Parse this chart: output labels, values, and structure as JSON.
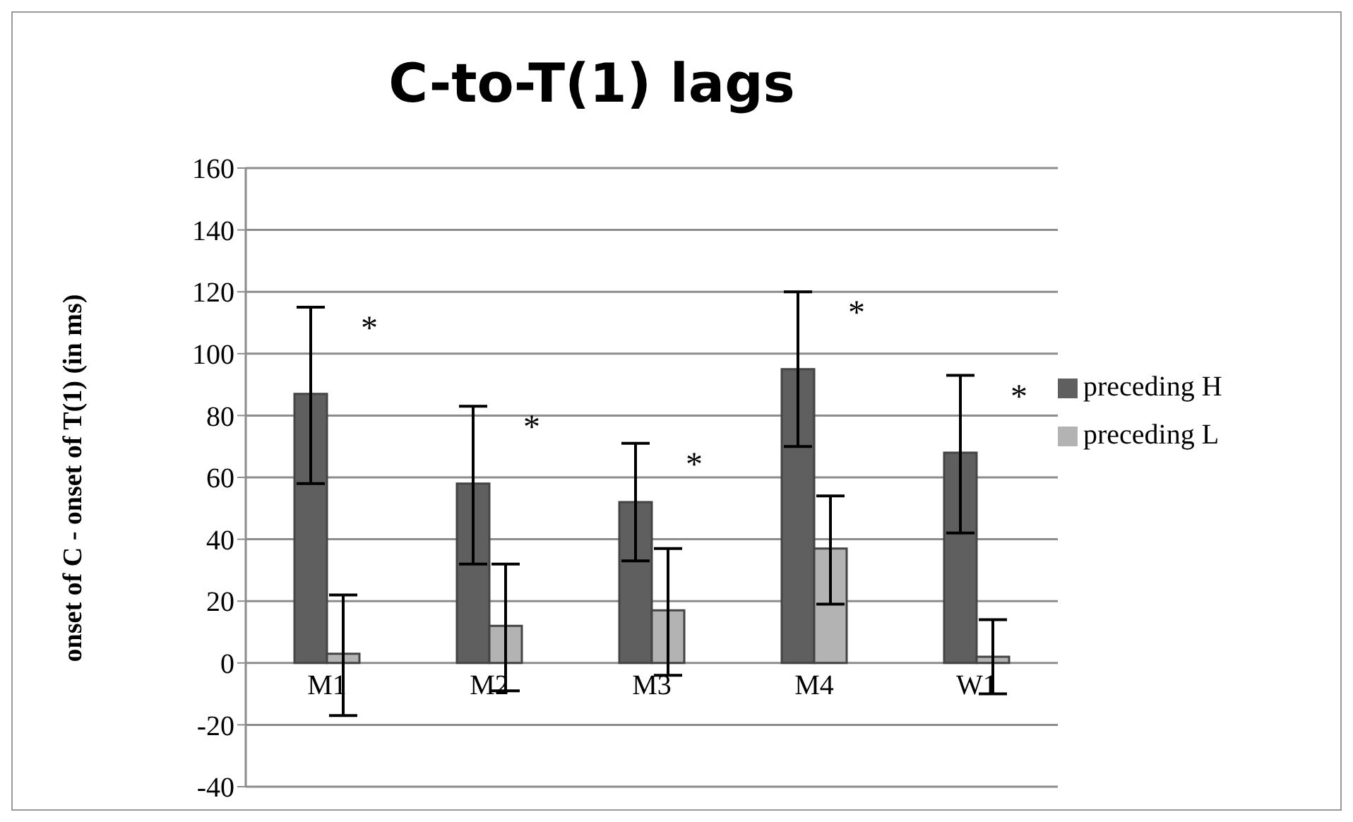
{
  "chart_data": {
    "type": "bar",
    "title": "C-to-T(1) lags",
    "ylabel": "onset of C - onset of T(1) (in ms)",
    "categories": [
      "M1",
      "M2",
      "M3",
      "M4",
      "W1"
    ],
    "series": [
      {
        "name": "preceding H",
        "color": "#5f5f5f",
        "values": [
          87,
          58,
          52,
          95,
          68
        ],
        "errors": [
          [
            58,
            115
          ],
          [
            32,
            83
          ],
          [
            33,
            71
          ],
          [
            70,
            120
          ],
          [
            42,
            93
          ]
        ]
      },
      {
        "name": "preceding L",
        "color": "#b3b3b3",
        "values": [
          3,
          12,
          17,
          37,
          2
        ],
        "errors": [
          [
            -17,
            22
          ],
          [
            -9,
            32
          ],
          [
            -4,
            37
          ],
          [
            19,
            54
          ],
          [
            -10,
            14
          ]
        ]
      }
    ],
    "ylim": [
      -40,
      160
    ],
    "yticks": [
      -40,
      -20,
      0,
      20,
      40,
      60,
      80,
      100,
      120,
      140,
      160
    ],
    "grid": "y",
    "legend": "right",
    "annotations": [
      "*",
      "*",
      "*",
      "*",
      "*"
    ]
  }
}
